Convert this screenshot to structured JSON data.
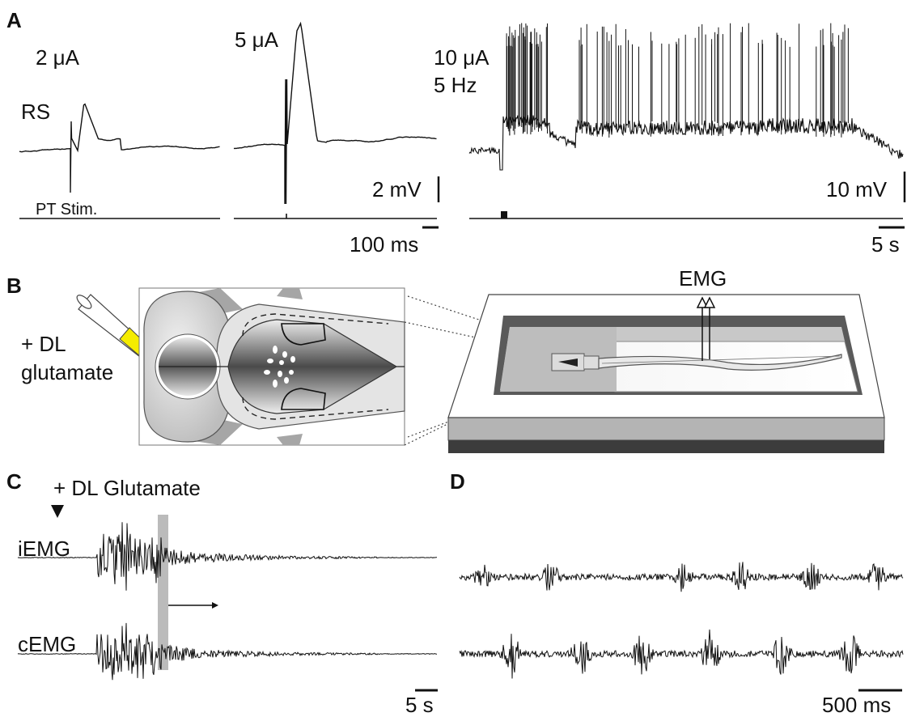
{
  "panels": {
    "a": {
      "letter": "A",
      "trace_label": "RS",
      "stim_label": "PT Stim.",
      "condition_1": "2 μA",
      "condition_2": "5 μA",
      "condition_3_line1": "10 μA",
      "condition_3_line2": "5 Hz",
      "scale_voltage_left": "2 mV",
      "scale_voltage_right": "10 mV",
      "scale_time_left": "100 ms",
      "scale_time_right": "5 s"
    },
    "b": {
      "letter": "B",
      "drug_line1": "+ DL",
      "drug_line2": "glutamate",
      "recording_label": "EMG"
    },
    "c": {
      "letter": "C",
      "drug_label": "+ DL Glutamate",
      "trace_1": "iEMG",
      "trace_2": "cEMG",
      "scale_time": "5 s"
    },
    "d": {
      "letter": "D",
      "scale_time": "500 ms"
    }
  },
  "colors": {
    "trace": "#111111",
    "drug": "#f5ec00",
    "highlight_band": "#bbbbbb"
  }
}
